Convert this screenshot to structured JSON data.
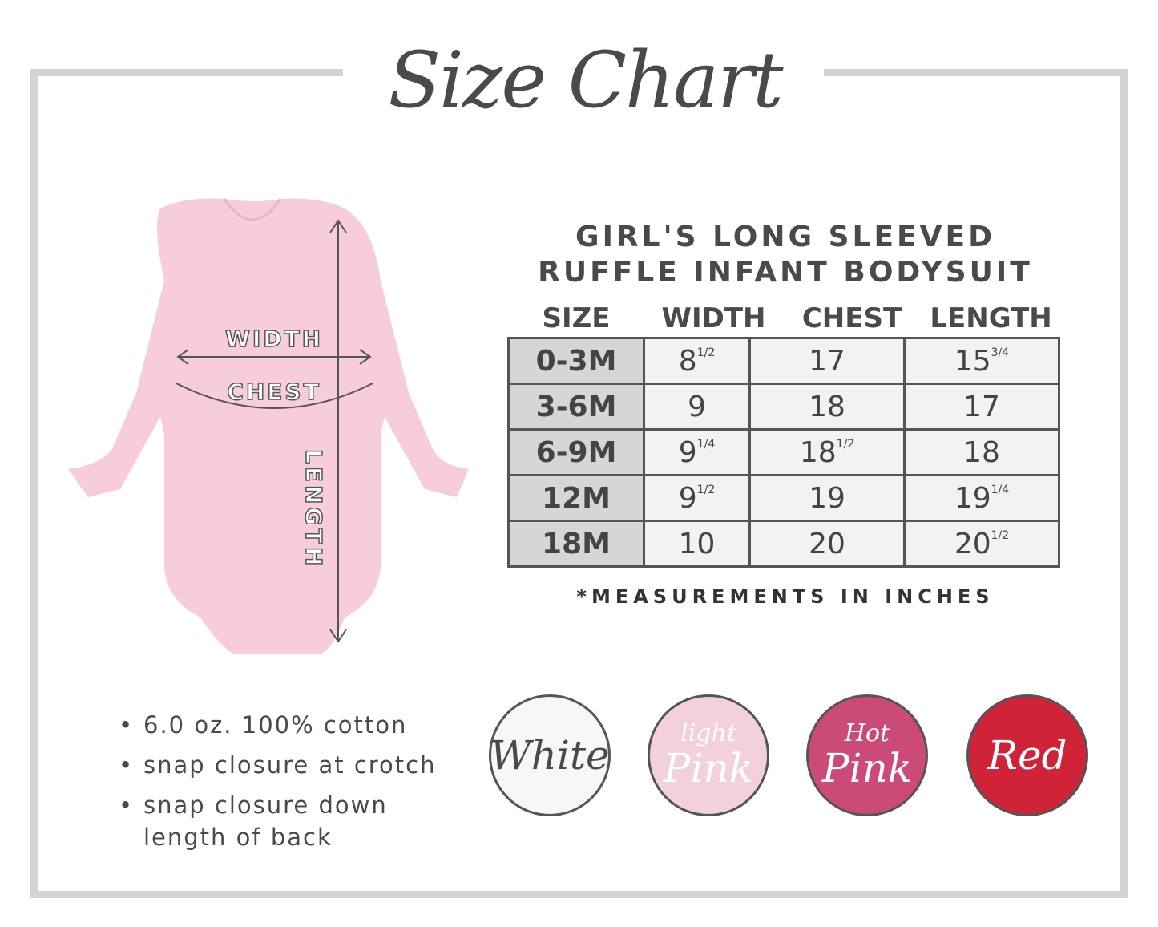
{
  "title": "Size Chart",
  "product": {
    "line1": "GIRL'S LONG SLEEVED",
    "line2": "RUFFLE INFANT BODYSUIT"
  },
  "diagram": {
    "width_label": "WIDTH",
    "chest_label": "CHEST",
    "length_label": "LENGTH",
    "garment_color": "#f6cdd9"
  },
  "table": {
    "headers": [
      "SIZE",
      "WIDTH",
      "CHEST",
      "LENGTH"
    ],
    "rows": [
      {
        "size": "0-3M",
        "width": "8",
        "width_frac": "1/2",
        "chest": "17",
        "chest_frac": "",
        "length": "15",
        "length_frac": "3/4"
      },
      {
        "size": "3-6M",
        "width": "9",
        "width_frac": "",
        "chest": "18",
        "chest_frac": "",
        "length": "17",
        "length_frac": ""
      },
      {
        "size": "6-9M",
        "width": "9",
        "width_frac": "1/4",
        "chest": "18",
        "chest_frac": "1/2",
        "length": "18",
        "length_frac": ""
      },
      {
        "size": "12M",
        "width": "9",
        "width_frac": "1/2",
        "chest": "19",
        "chest_frac": "",
        "length": "19",
        "length_frac": "1/4"
      },
      {
        "size": "18M",
        "width": "10",
        "width_frac": "",
        "chest": "20",
        "chest_frac": "",
        "length": "20",
        "length_frac": "1/2"
      }
    ]
  },
  "note": "*MEASUREMENTS IN INCHES",
  "features": [
    "6.0 oz. 100% cotton",
    "snap closure at crotch",
    "snap closure down",
    "length of back"
  ],
  "colors": [
    {
      "name": "White",
      "small": "",
      "big": "White",
      "bg": "#f7f7f7",
      "fg": "#4a4a4a"
    },
    {
      "name": "light Pink",
      "small": "light",
      "big": "Pink",
      "bg": "#f2d1dc",
      "fg": "#ffffff"
    },
    {
      "name": "Hot Pink",
      "small": "Hot",
      "big": "Pink",
      "bg": "#cc4a78",
      "fg": "#ffffff"
    },
    {
      "name": "Red",
      "small": "",
      "big": "Red",
      "bg": "#d12338",
      "fg": "#ffffff"
    }
  ]
}
